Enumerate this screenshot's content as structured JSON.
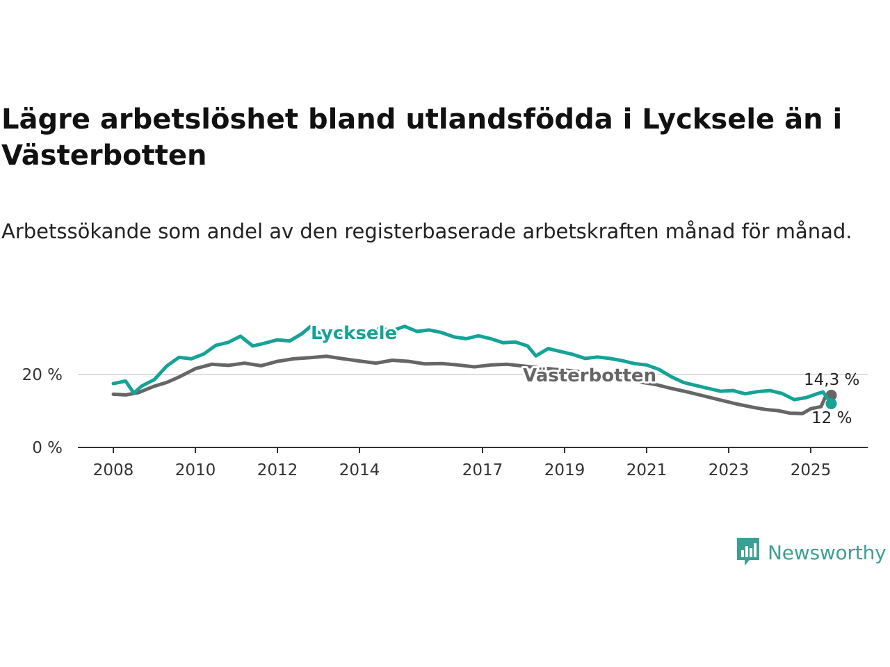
{
  "title": "Lägre arbetslöshet bland utlandsfödda i Lycksele än i Västerbotten",
  "subtitle": "Arbetssökande som andel av den registerbaserade arbetskraften månad för månad.",
  "brand": {
    "name": "Newsworthy",
    "color": "#3d9f93"
  },
  "chart_data": {
    "type": "line",
    "title": "Lägre arbetslöshet bland utlandsfödda i Lycksele än i Västerbotten",
    "subtitle": "Arbetssökande som andel av den registerbaserade arbetskraften månad för månad.",
    "xlabel": "",
    "ylabel": "",
    "x_ticks": [
      "2008",
      "2010",
      "2012",
      "2014",
      "2017",
      "2019",
      "2021",
      "2023",
      "2025"
    ],
    "y_ticks": [
      "0 %",
      "20 %"
    ],
    "y_tick_values": [
      0,
      20
    ],
    "xlim": [
      2007.9,
      2025.75
    ],
    "ylim": [
      0,
      35
    ],
    "grid": "horizontal",
    "legend": "direct labels on lines",
    "series": [
      {
        "name": "Västerbotten",
        "color": "#666666",
        "end_label": "14,3 %",
        "points": [
          [
            2008.0,
            14.6
          ],
          [
            2008.3,
            14.4
          ],
          [
            2008.6,
            15.0
          ],
          [
            2009.0,
            16.8
          ],
          [
            2009.3,
            17.8
          ],
          [
            2009.6,
            19.3
          ],
          [
            2010.0,
            21.6
          ],
          [
            2010.4,
            22.8
          ],
          [
            2010.8,
            22.5
          ],
          [
            2011.2,
            23.1
          ],
          [
            2011.6,
            22.4
          ],
          [
            2012.0,
            23.6
          ],
          [
            2012.4,
            24.3
          ],
          [
            2012.8,
            24.6
          ],
          [
            2013.2,
            25.0
          ],
          [
            2013.6,
            24.3
          ],
          [
            2014.0,
            23.7
          ],
          [
            2014.4,
            23.1
          ],
          [
            2014.8,
            23.9
          ],
          [
            2015.2,
            23.6
          ],
          [
            2015.6,
            22.9
          ],
          [
            2016.0,
            23.0
          ],
          [
            2016.4,
            22.6
          ],
          [
            2016.8,
            22.1
          ],
          [
            2017.2,
            22.6
          ],
          [
            2017.6,
            22.8
          ],
          [
            2018.0,
            22.3
          ],
          [
            2018.4,
            21.8
          ],
          [
            2018.8,
            21.4
          ],
          [
            2019.2,
            21.0
          ],
          [
            2019.6,
            20.5
          ],
          [
            2020.0,
            20.0
          ],
          [
            2020.4,
            19.0
          ],
          [
            2020.8,
            18.0
          ],
          [
            2021.2,
            17.3
          ],
          [
            2021.6,
            16.2
          ],
          [
            2022.0,
            15.2
          ],
          [
            2022.4,
            14.1
          ],
          [
            2022.8,
            13.0
          ],
          [
            2023.2,
            11.9
          ],
          [
            2023.6,
            11.0
          ],
          [
            2023.9,
            10.4
          ],
          [
            2024.2,
            10.1
          ],
          [
            2024.5,
            9.4
          ],
          [
            2024.8,
            9.3
          ],
          [
            2025.0,
            10.6
          ],
          [
            2025.25,
            11.2
          ],
          [
            2025.35,
            13.7
          ],
          [
            2025.5,
            14.3
          ]
        ]
      },
      {
        "name": "Lycksele",
        "color": "#15a396",
        "end_label": "12 %",
        "points": [
          [
            2008.0,
            17.5
          ],
          [
            2008.3,
            18.2
          ],
          [
            2008.5,
            14.9
          ],
          [
            2008.7,
            16.9
          ],
          [
            2009.0,
            18.6
          ],
          [
            2009.3,
            22.3
          ],
          [
            2009.6,
            24.7
          ],
          [
            2009.9,
            24.3
          ],
          [
            2010.2,
            25.6
          ],
          [
            2010.5,
            28.0
          ],
          [
            2010.8,
            28.8
          ],
          [
            2011.1,
            30.5
          ],
          [
            2011.4,
            27.8
          ],
          [
            2011.7,
            28.6
          ],
          [
            2012.0,
            29.5
          ],
          [
            2012.3,
            29.2
          ],
          [
            2012.6,
            31.2
          ],
          [
            2012.8,
            33.1
          ],
          [
            2013.0,
            31.5
          ],
          [
            2013.3,
            31.0
          ],
          [
            2013.6,
            30.7
          ],
          [
            2013.9,
            32.0
          ],
          [
            2014.2,
            31.0
          ],
          [
            2014.5,
            32.7
          ],
          [
            2014.8,
            32.0
          ],
          [
            2015.1,
            33.2
          ],
          [
            2015.4,
            31.8
          ],
          [
            2015.7,
            32.2
          ],
          [
            2016.0,
            31.5
          ],
          [
            2016.3,
            30.3
          ],
          [
            2016.6,
            29.8
          ],
          [
            2016.9,
            30.6
          ],
          [
            2017.2,
            29.8
          ],
          [
            2017.5,
            28.7
          ],
          [
            2017.8,
            28.9
          ],
          [
            2018.1,
            27.8
          ],
          [
            2018.3,
            25.1
          ],
          [
            2018.6,
            27.1
          ],
          [
            2018.9,
            26.3
          ],
          [
            2019.2,
            25.5
          ],
          [
            2019.5,
            24.4
          ],
          [
            2019.8,
            24.8
          ],
          [
            2020.1,
            24.4
          ],
          [
            2020.4,
            23.8
          ],
          [
            2020.7,
            23.0
          ],
          [
            2021.0,
            22.6
          ],
          [
            2021.3,
            21.4
          ],
          [
            2021.6,
            19.4
          ],
          [
            2021.9,
            17.8
          ],
          [
            2022.2,
            17.0
          ],
          [
            2022.5,
            16.2
          ],
          [
            2022.8,
            15.4
          ],
          [
            2023.1,
            15.6
          ],
          [
            2023.4,
            14.7
          ],
          [
            2023.7,
            15.3
          ],
          [
            2024.0,
            15.6
          ],
          [
            2024.3,
            14.8
          ],
          [
            2024.6,
            13.1
          ],
          [
            2024.9,
            13.7
          ],
          [
            2025.15,
            14.7
          ],
          [
            2025.3,
            15.2
          ],
          [
            2025.5,
            12.0
          ]
        ]
      }
    ]
  }
}
